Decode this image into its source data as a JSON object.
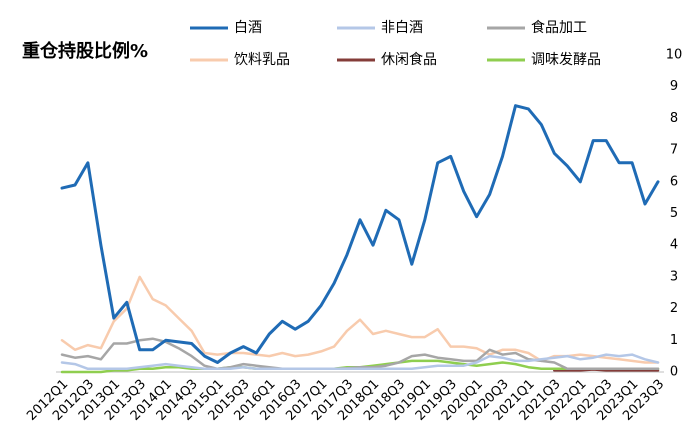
{
  "chart_data": {
    "type": "line",
    "title": "重仓持股比例%",
    "categories": [
      "2012Q1",
      null,
      "2012Q3",
      null,
      "2013Q1",
      null,
      "2013Q3",
      null,
      "2014Q1",
      null,
      "2014Q3",
      null,
      "2015Q1",
      null,
      "2015Q3",
      null,
      "2016Q1",
      null,
      "2016Q3",
      null,
      "2017Q1",
      null,
      "2017Q3",
      null,
      "2018Q1",
      null,
      "2018Q3",
      null,
      "2019Q1",
      null,
      "2019Q3",
      null,
      "2020Q1",
      null,
      "2020Q3",
      null,
      "2021Q1",
      null,
      "2021Q3",
      null,
      "2022Q1",
      null,
      "2022Q3",
      null,
      "2023Q1",
      null,
      "2023Q3"
    ],
    "series": [
      {
        "name": "白酒",
        "color": "#1f6bb5",
        "values": [
          5.8,
          5.9,
          6.6,
          4.0,
          1.7,
          2.2,
          0.7,
          0.7,
          1.0,
          0.95,
          0.9,
          0.5,
          0.3,
          0.6,
          0.8,
          0.6,
          1.2,
          1.6,
          1.35,
          1.6,
          2.1,
          2.8,
          3.7,
          4.8,
          4.0,
          5.1,
          4.8,
          3.4,
          4.8,
          6.6,
          6.8,
          5.7,
          4.9,
          5.6,
          6.8,
          8.4,
          8.3,
          7.8,
          6.9,
          6.5,
          6.0,
          7.3,
          7.3,
          6.6,
          6.6,
          5.3,
          6.0
        ]
      },
      {
        "name": "非白酒",
        "color": "#b4c7e7",
        "values": [
          0.3,
          0.25,
          0.1,
          0.1,
          0.1,
          0.1,
          0.15,
          0.2,
          0.25,
          0.2,
          0.15,
          0.1,
          0.1,
          0.1,
          0.15,
          0.1,
          0.1,
          0.1,
          0.1,
          0.1,
          0.1,
          0.1,
          0.1,
          0.1,
          0.1,
          0.1,
          0.1,
          0.1,
          0.15,
          0.2,
          0.2,
          0.2,
          0.3,
          0.5,
          0.45,
          0.35,
          0.35,
          0.4,
          0.45,
          0.5,
          0.4,
          0.45,
          0.55,
          0.5,
          0.55,
          0.4,
          0.3
        ]
      },
      {
        "name": "食品加工",
        "color": "#a6a6a6",
        "values": [
          0.55,
          0.45,
          0.5,
          0.4,
          0.9,
          0.9,
          1.0,
          1.05,
          0.95,
          0.75,
          0.5,
          0.2,
          0.1,
          0.15,
          0.25,
          0.2,
          0.15,
          0.1,
          0.1,
          0.1,
          0.1,
          0.1,
          0.12,
          0.15,
          0.15,
          0.2,
          0.3,
          0.5,
          0.55,
          0.45,
          0.4,
          0.35,
          0.35,
          0.7,
          0.55,
          0.6,
          0.4,
          0.35,
          0.3,
          0.1,
          0.1,
          0.1,
          0.1,
          0.1,
          0.1,
          0.1,
          0.1
        ]
      },
      {
        "name": "饮料乳品",
        "color": "#f8cbad",
        "values": [
          1.0,
          0.7,
          0.85,
          0.75,
          1.6,
          2.0,
          3.0,
          2.3,
          2.1,
          1.7,
          1.3,
          0.6,
          0.55,
          0.6,
          0.6,
          0.55,
          0.5,
          0.6,
          0.5,
          0.55,
          0.65,
          0.8,
          1.3,
          1.65,
          1.2,
          1.3,
          1.2,
          1.1,
          1.1,
          1.35,
          0.8,
          0.8,
          0.75,
          0.55,
          0.7,
          0.7,
          0.6,
          0.35,
          0.5,
          0.5,
          0.55,
          0.5,
          0.45,
          0.4,
          0.35,
          0.3,
          0.3
        ]
      },
      {
        "name": "休闲食品",
        "color": "#843c39",
        "values": [
          null,
          null,
          null,
          null,
          null,
          null,
          null,
          null,
          null,
          null,
          null,
          null,
          null,
          null,
          null,
          null,
          null,
          null,
          null,
          null,
          null,
          null,
          null,
          null,
          null,
          null,
          null,
          null,
          null,
          null,
          null,
          null,
          null,
          null,
          null,
          null,
          null,
          null,
          0.05,
          0.05,
          0.05,
          0.08,
          0.05,
          0.05,
          0.05,
          0.05,
          0.05
        ]
      },
      {
        "name": "调味发酵品",
        "color": "#8fce4f",
        "values": [
          0,
          0,
          0,
          0,
          0.05,
          0.05,
          0.1,
          0.1,
          0.15,
          0.15,
          0.1,
          0.1,
          0.1,
          0.15,
          0.15,
          0.1,
          0.1,
          0.1,
          0.1,
          0.1,
          0.1,
          0.1,
          0.15,
          0.15,
          0.2,
          0.25,
          0.3,
          0.35,
          0.35,
          0.35,
          0.3,
          0.25,
          0.2,
          0.25,
          0.3,
          0.25,
          0.15,
          0.1,
          0.1,
          0.1,
          0.1,
          0.1,
          0.1,
          0.1,
          0.1,
          0.1,
          0.1
        ]
      }
    ],
    "ylim": [
      0,
      10
    ],
    "yticks": [
      0,
      1,
      2,
      3,
      4,
      5,
      6,
      7,
      8,
      9,
      10
    ],
    "grid": false
  }
}
